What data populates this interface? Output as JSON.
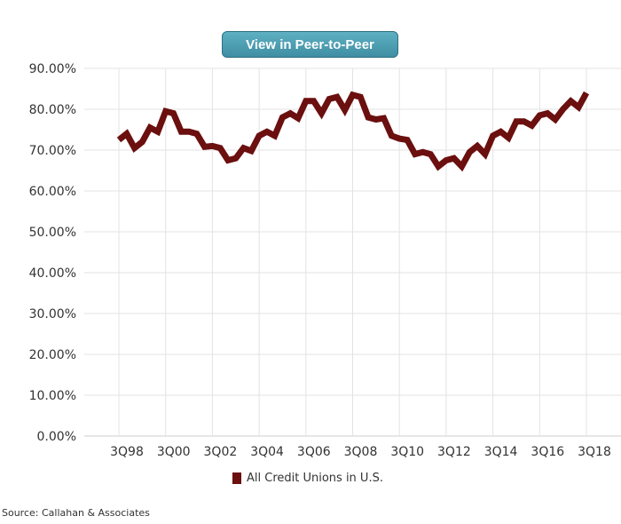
{
  "button": {
    "label": "View in Peer-to-Peer"
  },
  "source": "Source: Callahan & Associates",
  "chart_data": {
    "type": "line",
    "title": "",
    "xlabel": "",
    "ylabel": "",
    "ylim": [
      0,
      90
    ],
    "y_ticks": [
      "0.00%",
      "10.00%",
      "20.00%",
      "30.00%",
      "40.00%",
      "50.00%",
      "60.00%",
      "70.00%",
      "80.00%",
      "90.00%"
    ],
    "x_tick_labels": [
      "3Q98",
      "3Q00",
      "3Q02",
      "3Q04",
      "3Q06",
      "3Q08",
      "3Q10",
      "3Q12",
      "3Q14",
      "3Q16",
      "3Q18"
    ],
    "legend_position": "bottom-center",
    "series": [
      {
        "name": "All Credit Unions in U.S.",
        "color": "#6b0f0f",
        "values": [
          72.5,
          74.0,
          70.5,
          72.0,
          75.5,
          74.5,
          79.5,
          79.0,
          74.5,
          74.5,
          74.0,
          70.8,
          71.0,
          70.5,
          67.5,
          68.0,
          70.5,
          69.8,
          73.5,
          74.5,
          73.5,
          78.0,
          79.0,
          77.8,
          82.0,
          82.0,
          79.0,
          82.5,
          83.0,
          79.8,
          83.5,
          83.0,
          78.0,
          77.5,
          77.8,
          73.5,
          72.8,
          72.5,
          69.0,
          69.5,
          69.0,
          66.0,
          67.5,
          68.0,
          66.0,
          69.5,
          71.0,
          69.0,
          73.5,
          74.5,
          73.0,
          77.0,
          77.0,
          76.0,
          78.5,
          79.0,
          77.5,
          80.0,
          82.0,
          80.5,
          84.0
        ]
      }
    ]
  }
}
